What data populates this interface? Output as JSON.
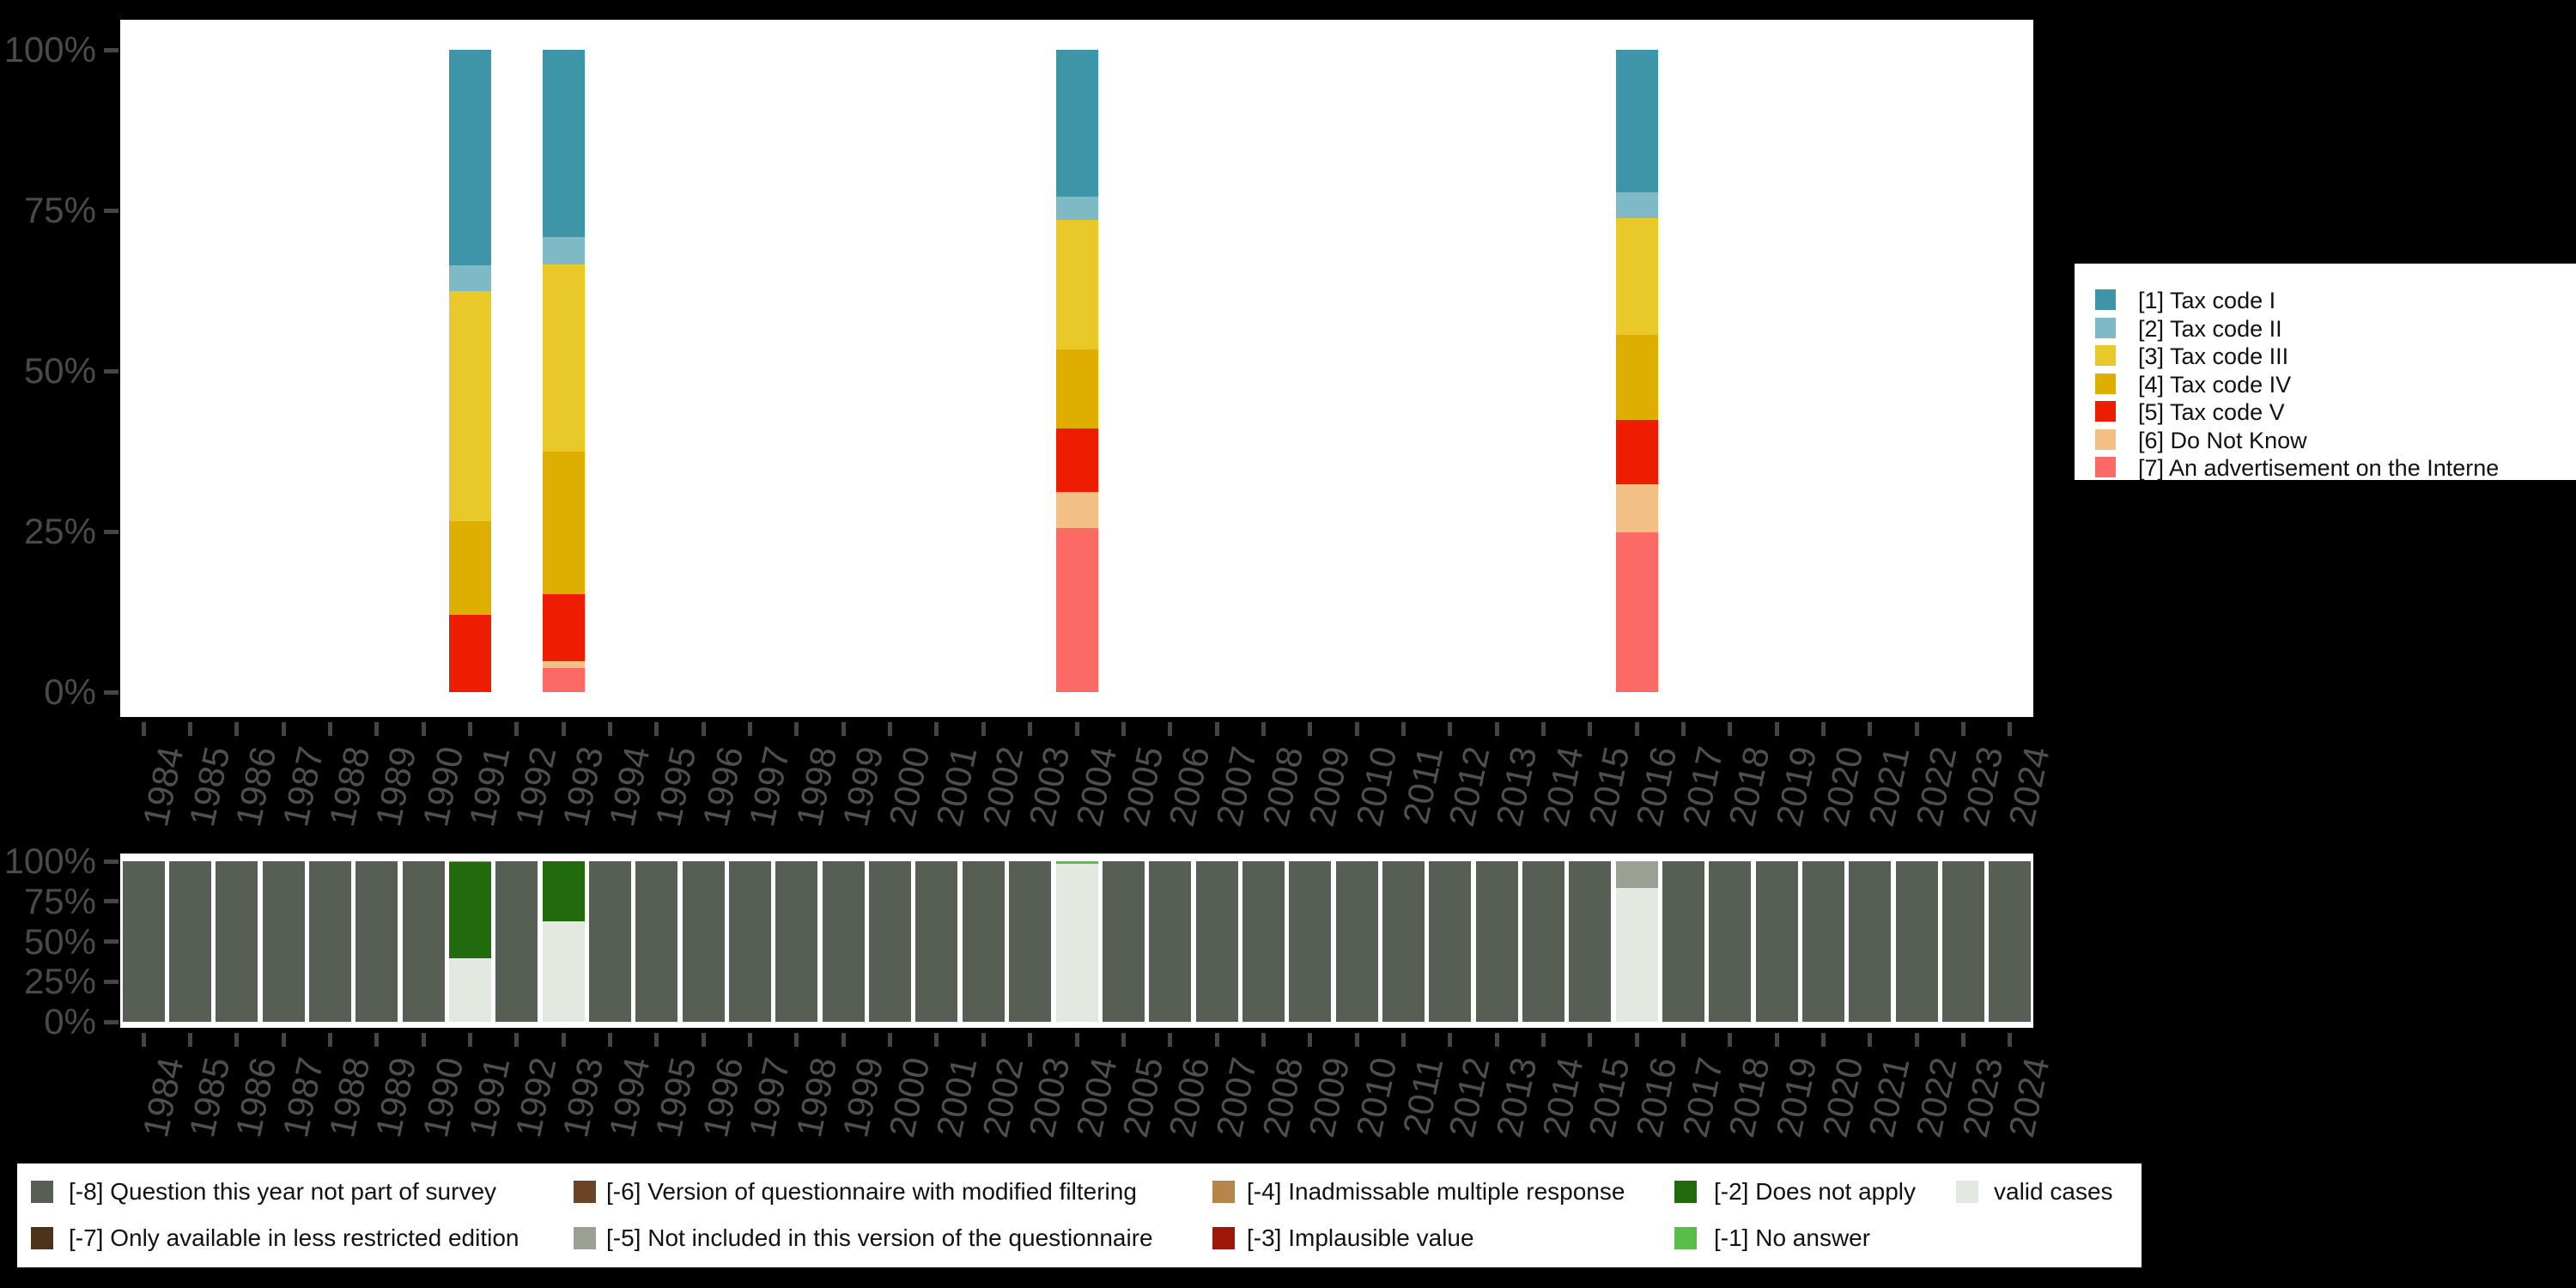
{
  "background_color": "#000000",
  "panel_color": "#ffffff",
  "axis_label_color": "#4a4a4a",
  "chart_data": [
    {
      "id": "variable-distribution-by-year",
      "type": "bar",
      "stacked": true,
      "unit": "percent",
      "title": "",
      "xlabel": "",
      "ylabel": "",
      "ylim": [
        0,
        100
      ],
      "grid": false,
      "legend_position": "right",
      "x_tick_angle_deg": 78,
      "y_ticks": [
        {
          "value": 100,
          "label": "100%"
        },
        {
          "value": 75,
          "label": "75%"
        },
        {
          "value": 50,
          "label": "50%"
        },
        {
          "value": 25,
          "label": "25%"
        },
        {
          "value": 0,
          "label": "0%"
        }
      ],
      "x": [
        "1984",
        "1985",
        "1986",
        "1987",
        "1988",
        "1989",
        "1990",
        "1991",
        "1992",
        "1993",
        "1994",
        "1995",
        "1996",
        "1997",
        "1998",
        "1999",
        "2000",
        "2001",
        "2002",
        "2003",
        "2004",
        "2005",
        "2006",
        "2007",
        "2008",
        "2009",
        "2010",
        "2011",
        "2012",
        "2013",
        "2014",
        "2015",
        "2016",
        "2017",
        "2018",
        "2019",
        "2020",
        "2021",
        "2022",
        "2023",
        "2024"
      ],
      "series": [
        {
          "name": "[1] Tax code I",
          "color": "#3e95a8",
          "default": 0,
          "values_by_year": {
            "1991": 33.6,
            "1993": 29.1,
            "2004": 22.9,
            "2016": 22.2
          }
        },
        {
          "name": "[2] Tax code II",
          "color": "#7fb9c5",
          "default": 0,
          "values_by_year": {
            "1991": 4.0,
            "1993": 4.3,
            "2004": 3.6,
            "2016": 4.0
          }
        },
        {
          "name": "[3] Tax code III",
          "color": "#e9c82a",
          "default": 0,
          "values_by_year": {
            "1991": 35.8,
            "1993": 29.2,
            "2004": 20.1,
            "2016": 18.2
          }
        },
        {
          "name": "[4] Tax code IV",
          "color": "#deaf00",
          "default": 0,
          "values_by_year": {
            "1991": 14.6,
            "1993": 22.1,
            "2004": 12.3,
            "2016": 13.2
          }
        },
        {
          "name": "[5] Tax code V",
          "color": "#ee1c00",
          "default": 0,
          "values_by_year": {
            "1991": 12.0,
            "1993": 10.5,
            "2004": 10.0,
            "2016": 10.0
          }
        },
        {
          "name": "[6] Do Not Know",
          "color": "#f2bf85",
          "default": 0,
          "values_by_year": {
            "1993": 1.1,
            "2004": 5.6,
            "2016": 7.6
          }
        },
        {
          "name": "[7] An advertisement on the Interne",
          "color": "#fb6a64",
          "default": 0,
          "values_by_year": {
            "1993": 3.7,
            "2004": 25.5,
            "2016": 24.8
          }
        }
      ]
    },
    {
      "id": "missing-values-by-year",
      "type": "bar",
      "stacked": true,
      "unit": "percent",
      "title": "",
      "xlabel": "",
      "ylabel": "",
      "ylim": [
        0,
        100
      ],
      "grid": false,
      "legend_position": "bottom",
      "x_tick_angle_deg": 78,
      "y_ticks": [
        {
          "value": 100,
          "label": "100%"
        },
        {
          "value": 75,
          "label": "75%"
        },
        {
          "value": 50,
          "label": "50%"
        },
        {
          "value": 25,
          "label": "25%"
        },
        {
          "value": 0,
          "label": "0%"
        }
      ],
      "x": [
        "1984",
        "1985",
        "1986",
        "1987",
        "1988",
        "1989",
        "1990",
        "1991",
        "1992",
        "1993",
        "1994",
        "1995",
        "1996",
        "1997",
        "1998",
        "1999",
        "2000",
        "2001",
        "2002",
        "2003",
        "2004",
        "2005",
        "2006",
        "2007",
        "2008",
        "2009",
        "2010",
        "2011",
        "2012",
        "2013",
        "2014",
        "2015",
        "2016",
        "2017",
        "2018",
        "2019",
        "2020",
        "2021",
        "2022",
        "2023",
        "2024"
      ],
      "series": [
        {
          "name": "[-8] Question this year not part of survey",
          "color": "#575e54",
          "default": 100,
          "values_by_year": {
            "1991": 0,
            "1993": 0,
            "2004": 0,
            "2016": 0
          }
        },
        {
          "name": "[-7] Only available in less restricted edition",
          "color": "#4c3319",
          "default": 0,
          "values_by_year": {}
        },
        {
          "name": "[-6] Version of questionnaire with modified filtering",
          "color": "#6b4325",
          "default": 0,
          "values_by_year": {}
        },
        {
          "name": "[-5] Not included in this version of the questionnaire",
          "color": "#9aa094",
          "default": 0,
          "values_by_year": {
            "2016": 15.8
          }
        },
        {
          "name": "[-4] Inadmissable multiple response",
          "color": "#b5854a",
          "default": 0,
          "values_by_year": {
            "1991": 0.8
          }
        },
        {
          "name": "[-3] Implausible value",
          "color": "#9d1607",
          "default": 0,
          "values_by_year": {}
        },
        {
          "name": "[-2] Does not apply",
          "color": "#216a0e",
          "default": 0,
          "values_by_year": {
            "1991": 59.6,
            "1993": 37.5
          }
        },
        {
          "name": "[-1] No answer",
          "color": "#57bf48",
          "default": 0,
          "values_by_year": {
            "2004": 1.5,
            "2016": 1.0
          }
        },
        {
          "name": "valid cases",
          "color": "#e3e8e1",
          "default": 0,
          "values_by_year": {
            "1991": 39.6,
            "1993": 62.5,
            "2004": 98.5,
            "2016": 83.2
          }
        }
      ]
    }
  ]
}
